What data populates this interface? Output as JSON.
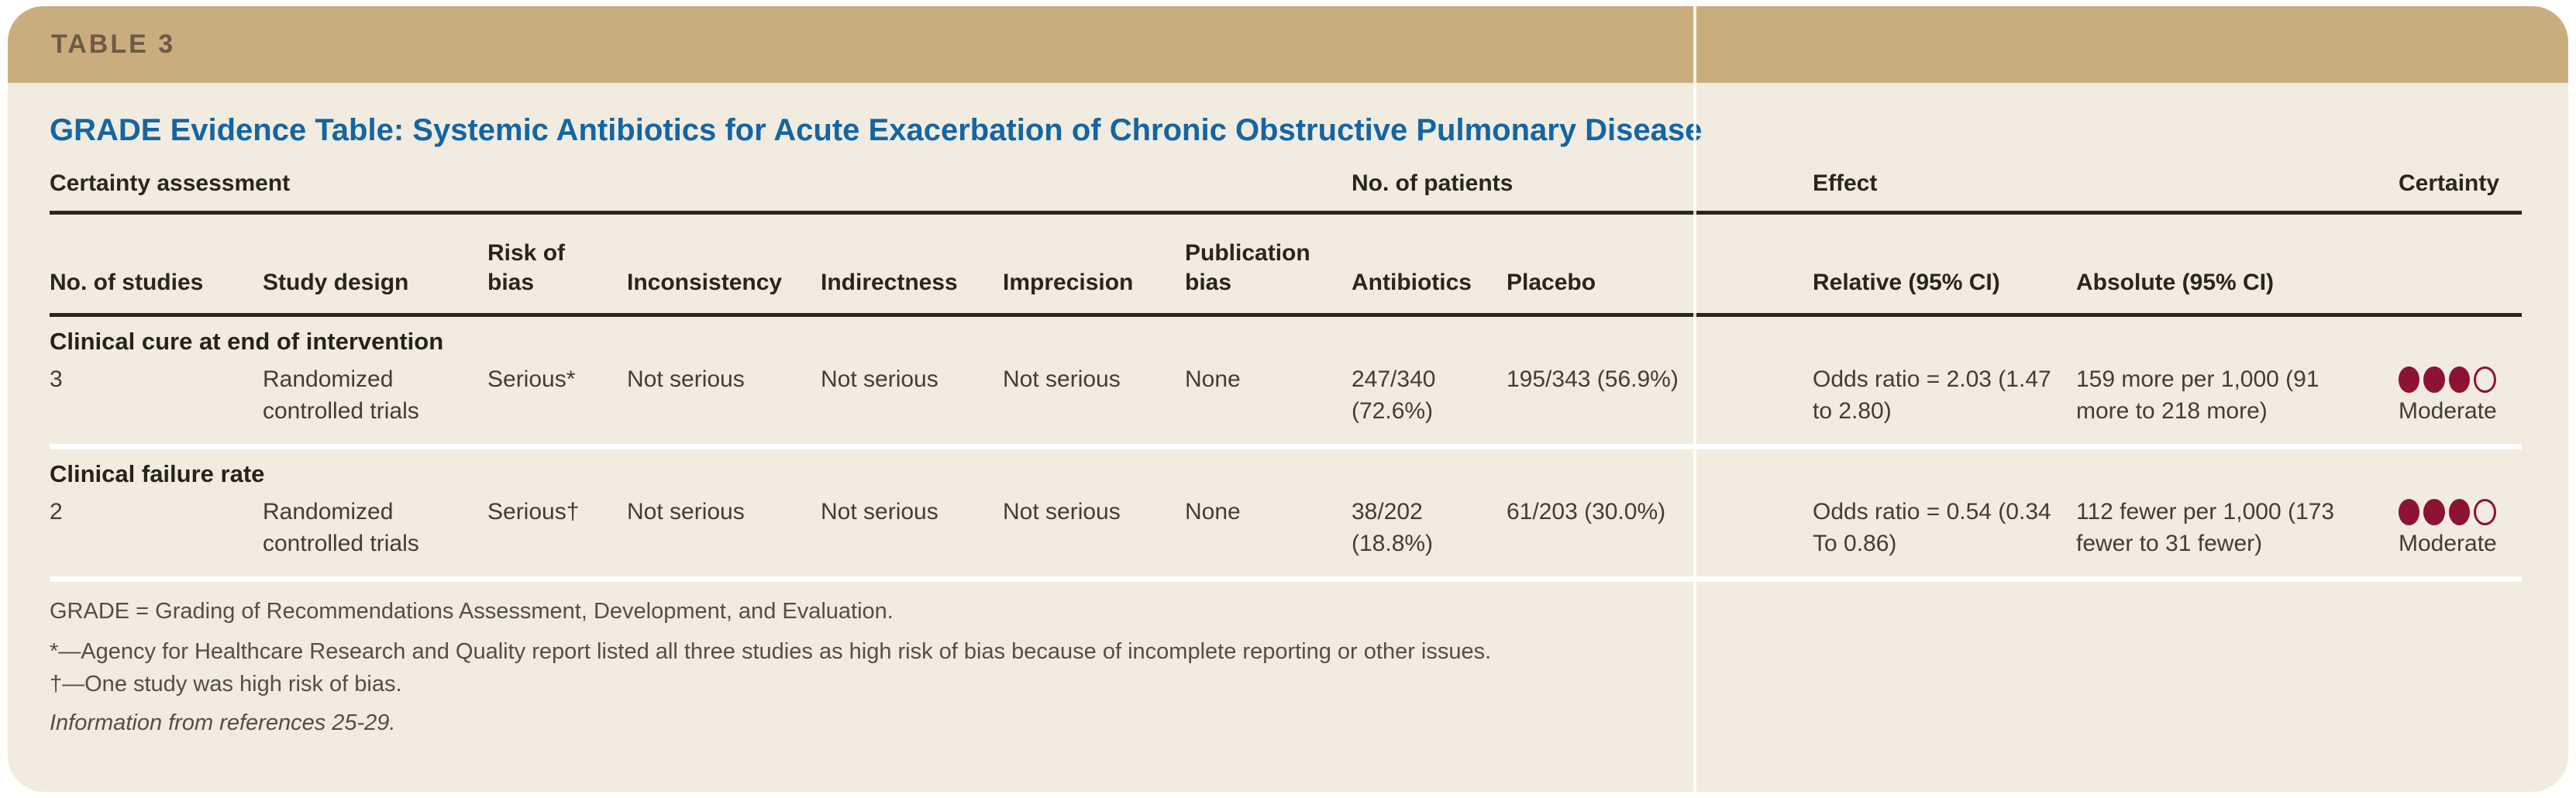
{
  "banner": {
    "label": "TABLE 3"
  },
  "title": "GRADE Evidence Table: Systemic Antibiotics for Acute Exacerbation of Chronic Obstructive Pulmonary Disease",
  "colors": {
    "banner_bg": "#c9ad7f",
    "card_bg": "#f1ecdf",
    "title_blue": "#1465a3",
    "certainty_dot_maroon": "#8c1334",
    "rule_black": "#2a2622"
  },
  "table": {
    "group_headers": {
      "certainty_assessment": "Certainty assessment",
      "no_of_patients": "No. of patients",
      "effect": "Effect",
      "certainty": "Certainty"
    },
    "columns": [
      "No. of studies",
      "Study design",
      "Risk of bias",
      "Inconsistency",
      "Indirectness",
      "Imprecision",
      "Publication bias",
      "Antibiotics",
      "Placebo",
      "Relative (95% CI)",
      "Absolute (95% CI)"
    ],
    "sections": [
      {
        "label": "Clinical cure at end of intervention",
        "row": {
          "no_of_studies": "3",
          "study_design": "Randomized controlled trials",
          "risk_of_bias": "Serious*",
          "inconsistency": "Not serious",
          "indirectness": "Not serious",
          "imprecision": "Not serious",
          "publication_bias": "None",
          "antibiotics": "247/340 (72.6%)",
          "placebo": "195/343 (56.9%)",
          "relative": "Odds ratio = 2.03 (1.47 to 2.80)",
          "absolute": "159 more per 1,000 (91 more to 218 more)",
          "certainty": {
            "filled": 3,
            "total": 4,
            "label": "Moderate"
          }
        }
      },
      {
        "label": "Clinical failure rate",
        "row": {
          "no_of_studies": "2",
          "study_design": "Randomized controlled trials",
          "risk_of_bias": "Serious†",
          "inconsistency": "Not serious",
          "indirectness": "Not serious",
          "imprecision": "Not serious",
          "publication_bias": "None",
          "antibiotics": "38/202 (18.8%)",
          "placebo": "61/203 (30.0%)",
          "relative": "Odds ratio = 0.54 (0.34 To 0.86)",
          "absolute": "112 fewer per 1,000 (173 fewer to 31 fewer)",
          "certainty": {
            "filled": 3,
            "total": 4,
            "label": "Moderate"
          }
        }
      }
    ]
  },
  "footnotes": {
    "abbreviation": "GRADE = Grading of Recommendations Assessment, Development, and Evaluation.",
    "asterisk": "*—Agency for Healthcare Research and Quality report listed all three studies as high risk of bias because of incomplete reporting or other issues.",
    "dagger": "†—One study was high risk of bias.",
    "source": "Information from references 25-29."
  }
}
